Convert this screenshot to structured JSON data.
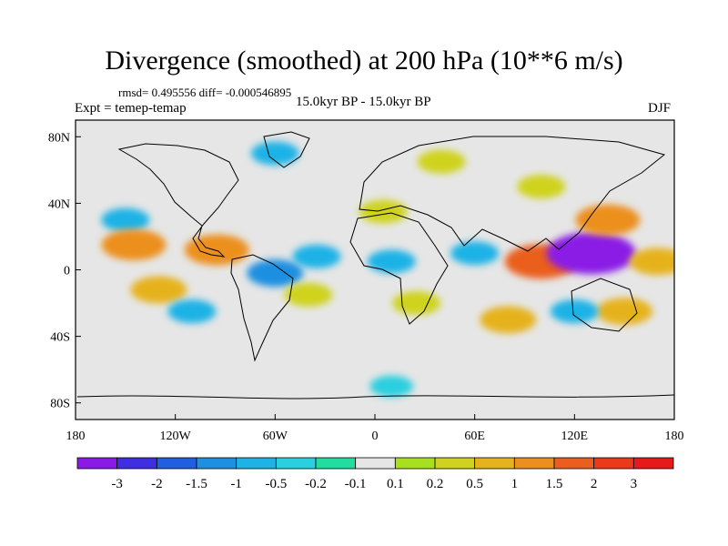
{
  "figure": {
    "title": "Divergence (smoothed) at 200 hPa (10**6 m/s)",
    "stats": "rmsd= 0.495556 diff= -0.000546895",
    "left_subtitle": "Expt = temep-temap",
    "center_subtitle": "15.0kyr BP - 15.0kyr BP",
    "right_subtitle": "DJF"
  },
  "chart_data": {
    "type": "heatmap",
    "projection": "cylindrical equidistant",
    "variable": "Divergence (smoothed) at 200 hPa",
    "units": "10**6 m/s",
    "season": "DJF",
    "xlim": [
      -180,
      180
    ],
    "ylim": [
      -90,
      90
    ],
    "x_ticks": [
      {
        "value": -180,
        "label": "180"
      },
      {
        "value": -120,
        "label": "120W"
      },
      {
        "value": -60,
        "label": "60W"
      },
      {
        "value": 0,
        "label": "0"
      },
      {
        "value": 60,
        "label": "60E"
      },
      {
        "value": 120,
        "label": "120E"
      },
      {
        "value": 180,
        "label": "180"
      }
    ],
    "y_ticks": [
      {
        "value": 80,
        "label": "80N"
      },
      {
        "value": 40,
        "label": "40N"
      },
      {
        "value": 0,
        "label": "0"
      },
      {
        "value": -40,
        "label": "40S"
      },
      {
        "value": -80,
        "label": "80S"
      }
    ],
    "colorbar": {
      "levels": [
        "-3",
        "-2",
        "-1.5",
        "-1",
        "-0.5",
        "-0.2",
        "-0.1",
        "0.1",
        "0.2",
        "0.5",
        "1",
        "1.5",
        "2",
        "3"
      ],
      "colors": [
        "#8a1be6",
        "#3f2fe0",
        "#1f5fe0",
        "#1f8fe0",
        "#1fb2e6",
        "#2acfe0",
        "#22dca0",
        "#e6e6e6",
        "#a8df1f",
        "#cfd31f",
        "#e6b21f",
        "#ec8f1f",
        "#ea5f1f",
        "#ea3a1a",
        "#e61a1a"
      ]
    },
    "regions": [
      {
        "lon": -150,
        "lat": 30,
        "value": -0.5
      },
      {
        "lon": -145,
        "lat": 15,
        "value": 1.5
      },
      {
        "lon": -95,
        "lat": 12,
        "value": 1.5
      },
      {
        "lon": -60,
        "lat": -2,
        "value": -1
      },
      {
        "lon": -35,
        "lat": 8,
        "value": -0.5
      },
      {
        "lon": -130,
        "lat": -12,
        "value": 1
      },
      {
        "lon": -110,
        "lat": -25,
        "value": -0.5
      },
      {
        "lon": -40,
        "lat": -15,
        "value": 0.5
      },
      {
        "lon": 5,
        "lat": 35,
        "value": 0.5
      },
      {
        "lon": 10,
        "lat": 5,
        "value": -0.5
      },
      {
        "lon": 25,
        "lat": -20,
        "value": 0.5
      },
      {
        "lon": 60,
        "lat": 10,
        "value": -0.5
      },
      {
        "lon": 100,
        "lat": 5,
        "value": 2
      },
      {
        "lon": 130,
        "lat": 10,
        "value": -3
      },
      {
        "lon": 140,
        "lat": 30,
        "value": 1.5
      },
      {
        "lon": 170,
        "lat": 5,
        "value": 1
      },
      {
        "lon": 150,
        "lat": -25,
        "value": 1
      },
      {
        "lon": 120,
        "lat": -25,
        "value": -0.5
      },
      {
        "lon": 80,
        "lat": -30,
        "value": 1
      },
      {
        "lon": 100,
        "lat": 50,
        "value": 0.5
      },
      {
        "lon": -60,
        "lat": 70,
        "value": -0.5
      },
      {
        "lon": 40,
        "lat": 65,
        "value": 0.5
      },
      {
        "lon": 10,
        "lat": -70,
        "value": -0.2
      }
    ]
  }
}
